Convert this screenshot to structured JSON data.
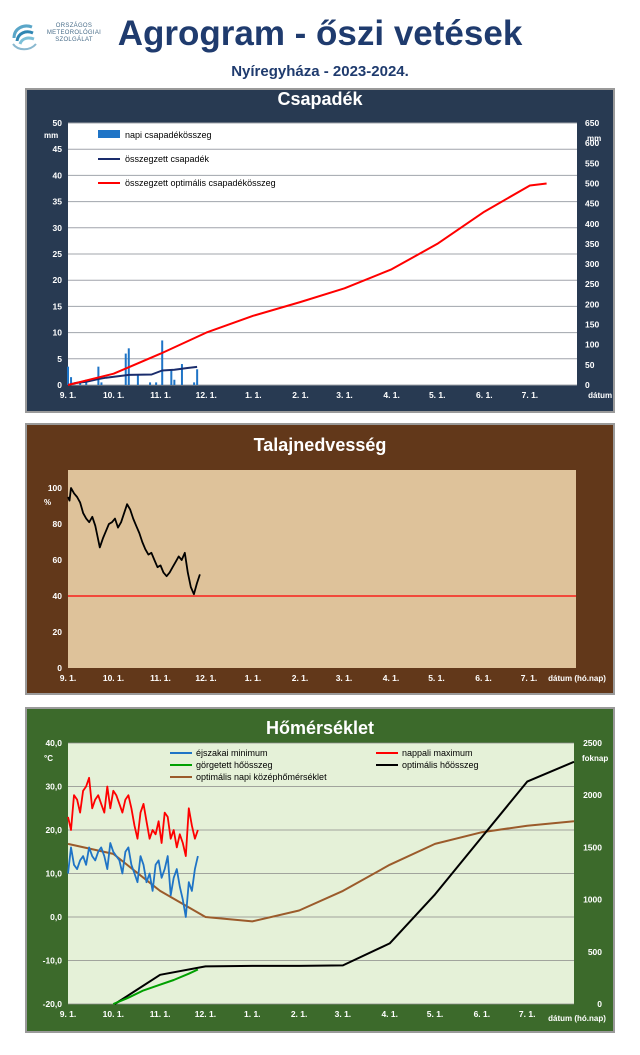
{
  "logo": {
    "lines": [
      "ORSZÁGOS",
      "METEOROLÓGIAI",
      "SZOLGÁLAT"
    ]
  },
  "header": {
    "title": "Agrogram - őszi vetések",
    "subtitle": "Nyíregyháza - 2023-2024."
  },
  "colors": {
    "panel1_bg": "#283a52",
    "panel2_bg": "#62381a",
    "panel3_bg": "#3c6a2b",
    "title": "#1f3b6e"
  },
  "chart_data": [
    {
      "type": "bar",
      "title": "Csapadék",
      "x_ticks": [
        "9. 1.",
        "10. 1.",
        "11. 1.",
        "12. 1.",
        "1. 1.",
        "2. 1.",
        "3. 1.",
        "4. 1.",
        "5. 1.",
        "6. 1.",
        "7. 1."
      ],
      "xlabel": "dátum (hó.nap)",
      "y_left_unit": "mm",
      "y_left_ticks": [
        "50",
        "45",
        "40",
        "35",
        "30",
        "25",
        "20",
        "15",
        "10",
        "5",
        "0"
      ],
      "y_right_unit": "mm",
      "y_right_ticks": [
        "650",
        "600",
        "550",
        "500",
        "450",
        "400",
        "350",
        "300",
        "250",
        "200",
        "150",
        "100",
        "50",
        "0"
      ],
      "ylim_left": [
        0,
        50
      ],
      "ylim_right": [
        0,
        650
      ],
      "legend": [
        "napi csapadékösszeg",
        "összegzett csapadék",
        "összegzett optimális csapadékösszeg"
      ],
      "series": [
        {
          "name": "napi csapadékösszeg",
          "axis": "left",
          "color": "#1f74c6",
          "x": [
            0,
            2,
            8,
            12,
            20,
            22,
            38,
            40,
            46,
            54,
            58,
            62,
            68,
            70,
            75,
            83,
            85
          ],
          "values": [
            3.5,
            1.5,
            0.5,
            1.0,
            3.5,
            0.5,
            6.0,
            7.0,
            2.0,
            0.5,
            0.5,
            8.5,
            3.0,
            1.0,
            4.0,
            0.5,
            3.0
          ]
        },
        {
          "name": "összegzett csapadék",
          "axis": "right",
          "color": "#1a2c6c",
          "x": [
            0,
            5,
            12,
            20,
            25,
            40,
            55,
            62,
            70,
            78,
            85
          ],
          "values": [
            0,
            5,
            8,
            15,
            18,
            25,
            26,
            36,
            38,
            42,
            45
          ]
        },
        {
          "name": "összegzett optimális csapadékösszeg",
          "axis": "right",
          "color": "#ff0000",
          "x": [
            0,
            30,
            61,
            91,
            122,
            153,
            182,
            213,
            243,
            274,
            304,
            315
          ],
          "values": [
            0,
            28,
            78,
            130,
            172,
            206,
            240,
            287,
            350,
            430,
            495,
            500
          ]
        }
      ]
    },
    {
      "type": "line",
      "title": "Talajnedvesség",
      "x_ticks": [
        "9. 1.",
        "10. 1.",
        "11. 1.",
        "12. 1.",
        "1. 1.",
        "2. 1.",
        "3. 1.",
        "4. 1.",
        "5. 1.",
        "6. 1.",
        "7. 1."
      ],
      "xlabel": "dátum (hó.nap)",
      "y_unit": "%",
      "y_ticks": [
        "100",
        "80",
        "60",
        "40",
        "20",
        "0"
      ],
      "ylim": [
        0,
        110
      ],
      "reference_line": {
        "value": 40,
        "color": "#ff0000"
      },
      "series": [
        {
          "name": "talajnedvesség",
          "color": "#000000",
          "x": [
            0,
            1,
            2,
            4,
            6,
            8,
            10,
            12,
            14,
            16,
            18,
            19,
            21,
            23,
            25,
            27,
            29,
            31,
            33,
            35,
            37,
            39,
            41,
            43,
            45,
            47,
            49,
            51,
            53,
            55,
            57,
            59,
            61,
            63,
            65,
            67,
            69,
            71,
            73,
            75,
            77,
            79,
            81,
            83,
            85,
            87
          ],
          "values": [
            95,
            93,
            100,
            97,
            95,
            92,
            86,
            83,
            81,
            84,
            79,
            75,
            67,
            72,
            76,
            80,
            81,
            83,
            78,
            81,
            86,
            91,
            88,
            83,
            79,
            75,
            70,
            66,
            63,
            64,
            60,
            56,
            57,
            53,
            51,
            53,
            56,
            59,
            62,
            60,
            64,
            53,
            45,
            41,
            47,
            52
          ]
        }
      ]
    },
    {
      "type": "line",
      "title": "Hőmérséklet",
      "x_ticks": [
        "9. 1.",
        "10. 1.",
        "11. 1.",
        "12. 1.",
        "1. 1.",
        "2. 1.",
        "3. 1.",
        "4. 1.",
        "5. 1.",
        "6. 1.",
        "7. 1."
      ],
      "xlabel": "dátum (hó.nap)",
      "y_left_unit": "°C",
      "y_left_ticks": [
        "40,0",
        "30,0",
        "20,0",
        "10,0",
        "0,0",
        "-10,0",
        "-20,0"
      ],
      "y_right_unit": "foknap",
      "y_right_ticks": [
        "2500",
        "2000",
        "1500",
        "1000",
        "500",
        "0"
      ],
      "ylim_left": [
        -20,
        40
      ],
      "ylim_right": [
        0,
        2500
      ],
      "legend": [
        "éjszakai minimum",
        "nappali maximum",
        "görgetett hőösszeg",
        "optimális hőösszeg",
        "optimális napi középhőmérséklet"
      ],
      "series": [
        {
          "name": "éjszakai minimum",
          "axis": "left",
          "color": "#1f74c6",
          "x": [
            0,
            2,
            4,
            6,
            8,
            10,
            12,
            14,
            16,
            18,
            20,
            22,
            24,
            26,
            28,
            30,
            32,
            34,
            36,
            38,
            40,
            42,
            44,
            46,
            48,
            50,
            52,
            54,
            56,
            58,
            60,
            62,
            64,
            66,
            68,
            70,
            72,
            74,
            76,
            78,
            80,
            82,
            84,
            86
          ],
          "values": [
            10,
            16,
            12,
            11,
            13,
            14,
            12,
            16,
            14,
            13,
            15,
            16,
            14,
            11,
            17,
            15,
            14,
            13,
            10,
            15,
            16,
            12,
            10,
            8,
            14,
            12,
            8,
            10,
            6,
            12,
            13,
            9,
            11,
            14,
            5,
            9,
            11,
            7,
            4,
            0,
            8,
            6,
            11,
            14
          ]
        },
        {
          "name": "nappali maximum",
          "axis": "left",
          "color": "#ff0000",
          "x": [
            0,
            2,
            4,
            6,
            8,
            10,
            12,
            14,
            16,
            18,
            20,
            22,
            24,
            26,
            28,
            30,
            32,
            34,
            36,
            38,
            40,
            42,
            44,
            46,
            48,
            50,
            52,
            54,
            56,
            58,
            60,
            62,
            64,
            66,
            68,
            70,
            72,
            74,
            76,
            78,
            80,
            82,
            84,
            86
          ],
          "values": [
            23,
            20,
            28,
            27,
            24,
            29,
            30,
            32,
            25,
            27,
            28,
            26,
            24,
            30,
            25,
            29,
            28,
            26,
            24,
            27,
            28,
            25,
            21,
            18,
            24,
            26,
            22,
            18,
            20,
            19,
            22,
            17,
            24,
            23,
            18,
            20,
            16,
            19,
            17,
            14,
            25,
            21,
            18,
            20
          ]
        },
        {
          "name": "görgetett hőösszeg",
          "axis": "right",
          "color": "#00a000",
          "x": [
            30,
            40,
            50,
            60,
            70,
            80,
            86
          ],
          "values": [
            0,
            60,
            130,
            180,
            230,
            290,
            330
          ]
        },
        {
          "name": "optimális hőösszeg",
          "axis": "right",
          "color": "#000000",
          "x": [
            31,
            45,
            61,
            91,
            122,
            153,
            182,
            213,
            243,
            274,
            304,
            335
          ],
          "values": [
            0,
            130,
            280,
            360,
            365,
            365,
            370,
            580,
            1050,
            1600,
            2130,
            2320
          ]
        },
        {
          "name": "optimális napi középhőmérséklet",
          "axis": "left",
          "color": "#9b5b2b",
          "x": [
            0,
            30,
            61,
            91,
            122,
            153,
            182,
            213,
            243,
            274,
            304,
            335
          ],
          "values": [
            16.8,
            14.5,
            6,
            0,
            -1,
            1.5,
            6,
            12,
            16.8,
            19.5,
            21,
            22
          ]
        }
      ]
    }
  ]
}
